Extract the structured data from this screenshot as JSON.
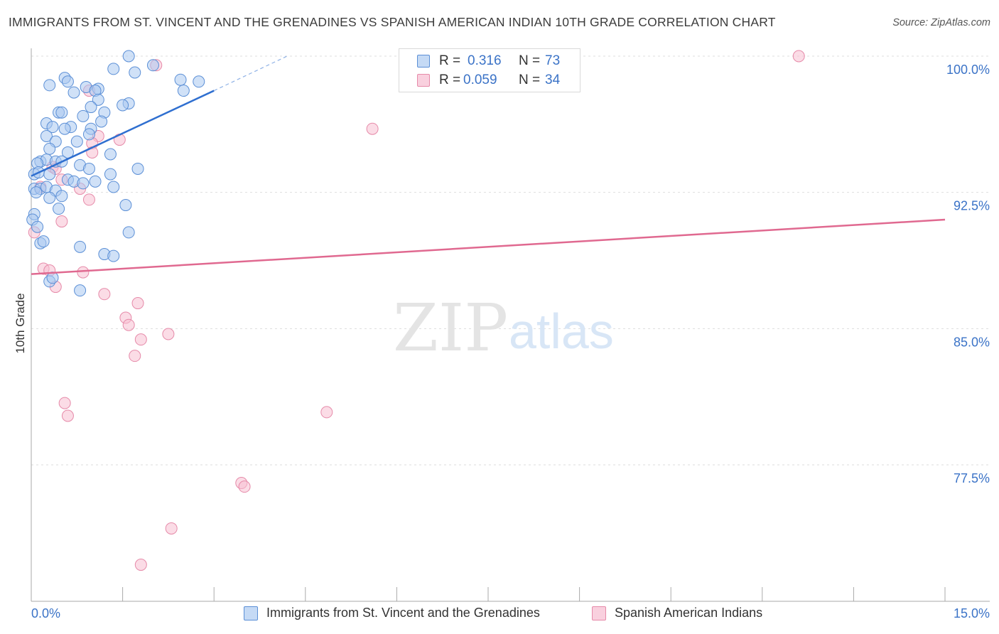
{
  "title": "IMMIGRANTS FROM ST. VINCENT AND THE GRENADINES VS SPANISH AMERICAN INDIAN 10TH GRADE CORRELATION CHART",
  "source": "Source: ZipAtlas.com",
  "watermark": {
    "zip": "ZIP",
    "atlas": "atlas"
  },
  "legend": {
    "series1": {
      "r_label": "R =",
      "r_value": "0.316",
      "n_label": "N =",
      "n_value": "73"
    },
    "series2": {
      "r_label": "R =",
      "r_value": "0.059",
      "n_label": "N =",
      "n_value": "34"
    }
  },
  "bottom_legend": {
    "series1": "Immigrants from St. Vincent and the Grenadines",
    "series2": "Spanish American Indians"
  },
  "colors": {
    "blue_fill": "#aac8f0",
    "blue_stroke": "#5b8fd6",
    "blue_line": "#2f6fd0",
    "pink_fill": "#f7c0d2",
    "pink_stroke": "#e68aa9",
    "pink_line": "#e06990",
    "tick_label": "#3b73c7",
    "grid": "#dddddd"
  },
  "chart_data": {
    "type": "scatter",
    "title": "IMMIGRANTS FROM ST. VINCENT AND THE GRENADINES VS SPANISH AMERICAN INDIAN 10TH GRADE CORRELATION CHART",
    "xlabel": "",
    "ylabel": "10th Grade",
    "xlim": [
      0.0,
      15.0
    ],
    "ylim": [
      70.5,
      100.7
    ],
    "x_tick_labels": [
      "0.0%",
      "15.0%"
    ],
    "y_ticks": [
      77.5,
      85.0,
      92.5,
      100.0
    ],
    "y_tick_labels": [
      "77.5%",
      "85.0%",
      "92.5%",
      "100.0%"
    ],
    "series": [
      {
        "name": "Immigrants from St. Vincent and the Grenadines",
        "color": "blue",
        "trend": {
          "x0": 0.0,
          "y0": 93.4,
          "x1": 3.0,
          "y1": 98.1,
          "dash_to_x": 4.2,
          "dash_to_y": 100.0
        },
        "points": [
          [
            1.6,
            100.0
          ],
          [
            2.0,
            99.5
          ],
          [
            1.35,
            99.3
          ],
          [
            1.7,
            99.1
          ],
          [
            0.55,
            98.8
          ],
          [
            0.6,
            98.6
          ],
          [
            2.45,
            98.7
          ],
          [
            2.75,
            98.6
          ],
          [
            0.3,
            98.4
          ],
          [
            0.9,
            98.3
          ],
          [
            1.1,
            98.2
          ],
          [
            0.7,
            98.0
          ],
          [
            2.5,
            98.1
          ],
          [
            1.05,
            98.1
          ],
          [
            1.1,
            97.6
          ],
          [
            1.6,
            97.4
          ],
          [
            1.5,
            97.3
          ],
          [
            0.98,
            97.2
          ],
          [
            0.45,
            96.9
          ],
          [
            0.5,
            96.9
          ],
          [
            1.2,
            96.9
          ],
          [
            0.85,
            96.7
          ],
          [
            0.25,
            96.3
          ],
          [
            0.65,
            96.1
          ],
          [
            0.35,
            96.1
          ],
          [
            0.55,
            96.0
          ],
          [
            0.98,
            96.0
          ],
          [
            1.15,
            96.4
          ],
          [
            0.95,
            95.7
          ],
          [
            0.25,
            95.6
          ],
          [
            0.4,
            95.3
          ],
          [
            0.75,
            95.3
          ],
          [
            0.3,
            94.9
          ],
          [
            0.6,
            94.7
          ],
          [
            1.3,
            94.6
          ],
          [
            0.15,
            94.2
          ],
          [
            0.25,
            94.3
          ],
          [
            0.4,
            94.2
          ],
          [
            0.5,
            94.2
          ],
          [
            0.1,
            94.1
          ],
          [
            0.8,
            94.0
          ],
          [
            0.95,
            93.8
          ],
          [
            1.3,
            93.5
          ],
          [
            1.75,
            93.8
          ],
          [
            0.05,
            93.5
          ],
          [
            0.12,
            93.6
          ],
          [
            0.3,
            93.5
          ],
          [
            0.6,
            93.2
          ],
          [
            0.7,
            93.1
          ],
          [
            0.85,
            93.0
          ],
          [
            1.05,
            93.1
          ],
          [
            1.35,
            92.8
          ],
          [
            0.05,
            92.7
          ],
          [
            0.15,
            92.7
          ],
          [
            0.25,
            92.8
          ],
          [
            0.4,
            92.6
          ],
          [
            0.5,
            92.3
          ],
          [
            0.3,
            92.2
          ],
          [
            0.08,
            92.5
          ],
          [
            0.45,
            91.6
          ],
          [
            1.55,
            91.8
          ],
          [
            0.05,
            91.3
          ],
          [
            0.02,
            91.0
          ],
          [
            1.6,
            90.3
          ],
          [
            0.15,
            89.7
          ],
          [
            0.8,
            89.5
          ],
          [
            1.2,
            89.1
          ],
          [
            1.35,
            89.0
          ],
          [
            0.3,
            87.6
          ],
          [
            0.35,
            87.8
          ],
          [
            0.8,
            87.1
          ],
          [
            0.1,
            90.6
          ],
          [
            0.2,
            89.8
          ]
        ]
      },
      {
        "name": "Spanish American Indians",
        "color": "pink",
        "trend": {
          "x0": 0.0,
          "y0": 88.0,
          "x1": 15.0,
          "y1": 91.0
        },
        "points": [
          [
            12.6,
            100.0
          ],
          [
            2.05,
            99.5
          ],
          [
            0.95,
            98.1
          ],
          [
            5.6,
            96.0
          ],
          [
            1.1,
            95.6
          ],
          [
            1.45,
            95.4
          ],
          [
            1.0,
            95.2
          ],
          [
            1.0,
            94.7
          ],
          [
            0.35,
            93.9
          ],
          [
            0.4,
            93.8
          ],
          [
            0.5,
            93.2
          ],
          [
            0.15,
            92.8
          ],
          [
            0.8,
            92.7
          ],
          [
            0.95,
            92.1
          ],
          [
            0.5,
            90.9
          ],
          [
            0.05,
            90.3
          ],
          [
            0.2,
            88.3
          ],
          [
            0.3,
            88.2
          ],
          [
            0.85,
            88.1
          ],
          [
            0.4,
            87.3
          ],
          [
            1.2,
            86.9
          ],
          [
            1.75,
            86.4
          ],
          [
            1.55,
            85.6
          ],
          [
            1.6,
            85.2
          ],
          [
            2.25,
            84.7
          ],
          [
            1.8,
            84.4
          ],
          [
            1.7,
            83.5
          ],
          [
            0.55,
            80.9
          ],
          [
            0.6,
            80.2
          ],
          [
            4.85,
            80.4
          ],
          [
            3.45,
            76.5
          ],
          [
            3.5,
            76.3
          ],
          [
            2.3,
            74.0
          ],
          [
            1.8,
            72.0
          ]
        ]
      }
    ]
  }
}
